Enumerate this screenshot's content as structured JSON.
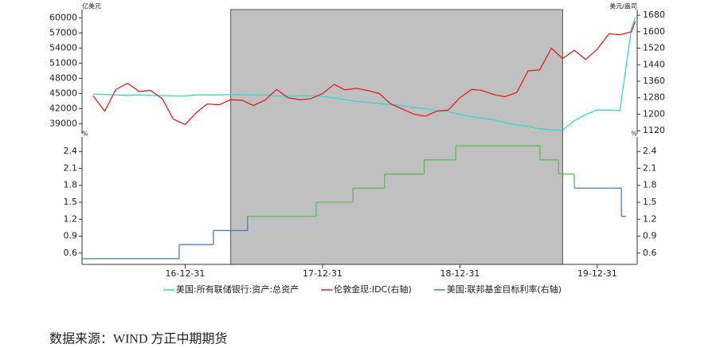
{
  "chart_data": [
    {
      "type": "line",
      "y_label": "亿美元",
      "y2_label": "美元/盎司",
      "x": [
        "16-04-30",
        "16-05-31",
        "16-06-30",
        "16-07-31",
        "16-08-31",
        "16-09-30",
        "16-10-31",
        "16-11-30",
        "16-12-31",
        "17-01-31",
        "17-02-28",
        "17-03-31",
        "17-04-30",
        "17-05-31",
        "17-06-30",
        "17-07-31",
        "17-08-31",
        "17-09-30",
        "17-10-31",
        "17-11-30",
        "17-12-31",
        "18-01-31",
        "18-02-28",
        "18-03-31",
        "18-04-30",
        "18-05-31",
        "18-06-30",
        "18-07-31",
        "18-08-31",
        "18-09-30",
        "18-10-31",
        "18-11-30",
        "18-12-31",
        "19-01-31",
        "19-02-28",
        "19-03-31",
        "19-04-30",
        "19-05-31",
        "19-06-30",
        "19-07-31",
        "19-08-31",
        "19-09-30",
        "19-10-31",
        "19-11-30",
        "19-12-31",
        "20-01-31",
        "20-02-29",
        "20-03-31",
        "20-04-10"
      ],
      "xlim": [
        "16-04-01",
        "20-04-15"
      ],
      "shade": [
        "17-05-01",
        "19-09-30"
      ],
      "ylim": [
        37000,
        61000
      ],
      "yticks": [
        39000,
        42000,
        45000,
        48000,
        51000,
        54000,
        57000,
        60000
      ],
      "y2lim": [
        1105,
        1692
      ],
      "y2ticks": [
        1120,
        1200,
        1280,
        1360,
        1440,
        1520,
        1600,
        1680
      ],
      "series": [
        {
          "name": "美国:所有联储银行:资产:总资产",
          "color": "#33d6d6",
          "values": [
            44900,
            44800,
            44700,
            44600,
            44700,
            44600,
            44600,
            44500,
            44500,
            44700,
            44700,
            44700,
            44800,
            44700,
            44700,
            44700,
            44500,
            44500,
            44500,
            44600,
            44400,
            44100,
            43800,
            43400,
            43200,
            43000,
            42800,
            42600,
            42200,
            42000,
            41500,
            41400,
            40800,
            40400,
            40100,
            39800,
            39200,
            38800,
            38500,
            38000,
            37800,
            37700,
            39600,
            40800,
            41700,
            41700,
            41600,
            58000,
            60000
          ]
        },
        {
          "name": "伦敦金现:IDC(右轴)",
          "color": "#e02020",
          "axis": "y2",
          "values": [
            1290,
            1215,
            1320,
            1350,
            1310,
            1315,
            1275,
            1175,
            1150,
            1210,
            1250,
            1245,
            1270,
            1268,
            1242,
            1268,
            1320,
            1280,
            1270,
            1275,
            1300,
            1345,
            1318,
            1325,
            1315,
            1300,
            1250,
            1225,
            1200,
            1190,
            1215,
            1220,
            1280,
            1320,
            1315,
            1295,
            1285,
            1305,
            1410,
            1415,
            1520,
            1470,
            1510,
            1465,
            1515,
            1590,
            1585,
            1600,
            1650
          ]
        }
      ]
    },
    {
      "type": "step",
      "y_label": "%",
      "y2_label": "%",
      "x": [
        "16-04-01",
        "16-12-15",
        "17-03-16",
        "17-06-15",
        "17-12-14",
        "18-03-22",
        "18-06-14",
        "18-09-27",
        "18-12-20",
        "19-08-01",
        "19-09-19",
        "19-10-31",
        "20-03-04"
      ],
      "xlim": [
        "16-04-01",
        "20-04-15"
      ],
      "xticks": [
        "16-12-31",
        "17-12-31",
        "18-12-31",
        "19-12-31"
      ],
      "shade": [
        "17-05-01",
        "19-09-30"
      ],
      "shade_line_color": "#5cb85c",
      "ylim": [
        0.4,
        2.6
      ],
      "yticks": [
        0.6,
        0.9,
        1.2,
        1.5,
        1.8,
        2.1,
        2.4
      ],
      "series": [
        {
          "name": "美国:联邦基金目标利率(右轴)",
          "color": "#4a7cc0",
          "values": [
            0.5,
            0.75,
            1.0,
            1.25,
            1.5,
            1.75,
            2.0,
            2.25,
            2.5,
            2.25,
            2.0,
            1.75,
            1.25
          ]
        }
      ]
    }
  ],
  "source": "数据来源：WIND  方正中期期货"
}
